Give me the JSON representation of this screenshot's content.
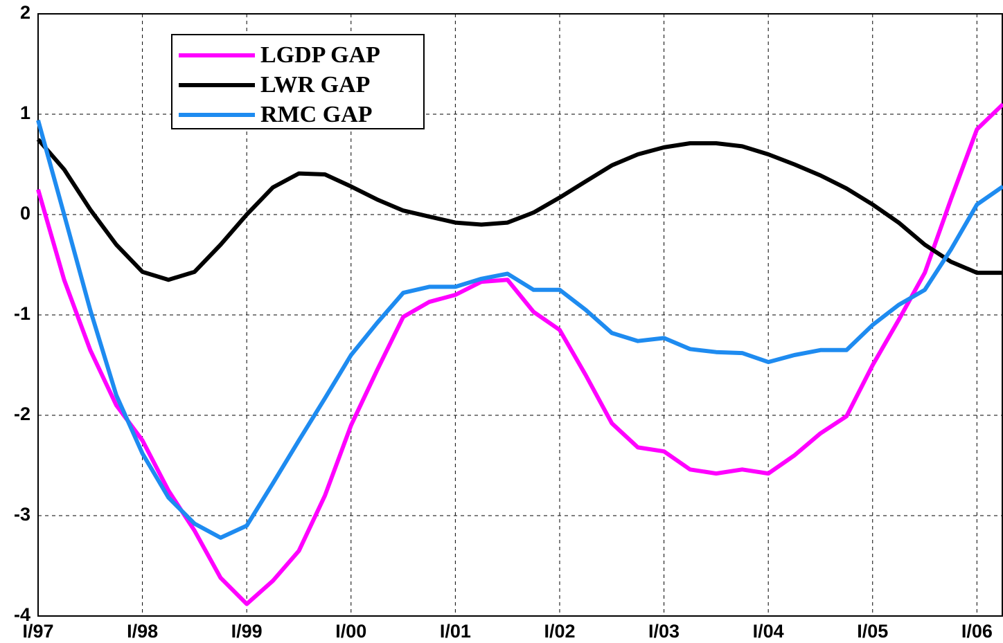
{
  "chart_data": {
    "type": "line",
    "x": [
      1997,
      1997.25,
      1997.5,
      1997.75,
      1998,
      1998.25,
      1998.5,
      1998.75,
      1999,
      1999.25,
      1999.5,
      1999.75,
      2000,
      2000.25,
      2000.5,
      2000.75,
      2001,
      2001.25,
      2001.5,
      2001.75,
      2002,
      2002.25,
      2002.5,
      2002.75,
      2003,
      2003.25,
      2003.5,
      2003.75,
      2004,
      2004.25,
      2004.5,
      2004.75,
      2005,
      2005.25,
      2005.5,
      2005.75,
      2006,
      2006.25
    ],
    "series": [
      {
        "name": "LGDP GAP",
        "color": "#ff00ff",
        "values": [
          0.25,
          -0.65,
          -1.35,
          -1.9,
          -2.25,
          -2.75,
          -3.15,
          -3.62,
          -3.88,
          -3.65,
          -3.35,
          -2.8,
          -2.1,
          -1.55,
          -1.02,
          -0.87,
          -0.8,
          -0.67,
          -0.65,
          -0.97,
          -1.15,
          -1.6,
          -2.08,
          -2.32,
          -2.36,
          -2.54,
          -2.58,
          -2.54,
          -2.58,
          -2.4,
          -2.18,
          -2.01,
          -1.5,
          -1.05,
          -0.58,
          0.15,
          0.85,
          1.1
        ]
      },
      {
        "name": "LWR GAP",
        "color": "#000000",
        "values": [
          0.75,
          0.45,
          0.05,
          -0.3,
          -0.57,
          -0.65,
          -0.57,
          -0.3,
          0.0,
          0.27,
          0.41,
          0.4,
          0.28,
          0.15,
          0.04,
          -0.02,
          -0.08,
          -0.1,
          -0.08,
          0.02,
          0.17,
          0.33,
          0.49,
          0.6,
          0.67,
          0.71,
          0.71,
          0.68,
          0.6,
          0.5,
          0.39,
          0.26,
          0.1,
          -0.08,
          -0.3,
          -0.47,
          -0.58,
          -0.58
        ]
      },
      {
        "name": "RMC GAP",
        "color": "#1e8bf0",
        "values": [
          0.94,
          0.0,
          -0.95,
          -1.8,
          -2.38,
          -2.82,
          -3.08,
          -3.22,
          -3.1,
          -2.68,
          -2.25,
          -1.83,
          -1.4,
          -1.08,
          -0.78,
          -0.72,
          -0.72,
          -0.64,
          -0.59,
          -0.75,
          -0.75,
          -0.95,
          -1.18,
          -1.26,
          -1.23,
          -1.34,
          -1.37,
          -1.38,
          -1.47,
          -1.4,
          -1.35,
          -1.35,
          -1.1,
          -0.9,
          -0.75,
          -0.35,
          0.1,
          0.28
        ]
      }
    ],
    "xlim": [
      1997,
      2006.25
    ],
    "xticks": [
      {
        "value": 1997,
        "label": "I/97"
      },
      {
        "value": 1998,
        "label": "I/98"
      },
      {
        "value": 1999,
        "label": "I/99"
      },
      {
        "value": 2000,
        "label": "I/00"
      },
      {
        "value": 2001,
        "label": "I/01"
      },
      {
        "value": 2002,
        "label": "I/02"
      },
      {
        "value": 2003,
        "label": "I/03"
      },
      {
        "value": 2004,
        "label": "I/04"
      },
      {
        "value": 2005,
        "label": "I/05"
      },
      {
        "value": 2006,
        "label": "I/06"
      }
    ],
    "ylim": [
      -4,
      2
    ],
    "yticks": [
      -4,
      -3,
      -2,
      -1,
      0,
      1,
      2
    ],
    "grid": true,
    "legend": "upper-left"
  }
}
